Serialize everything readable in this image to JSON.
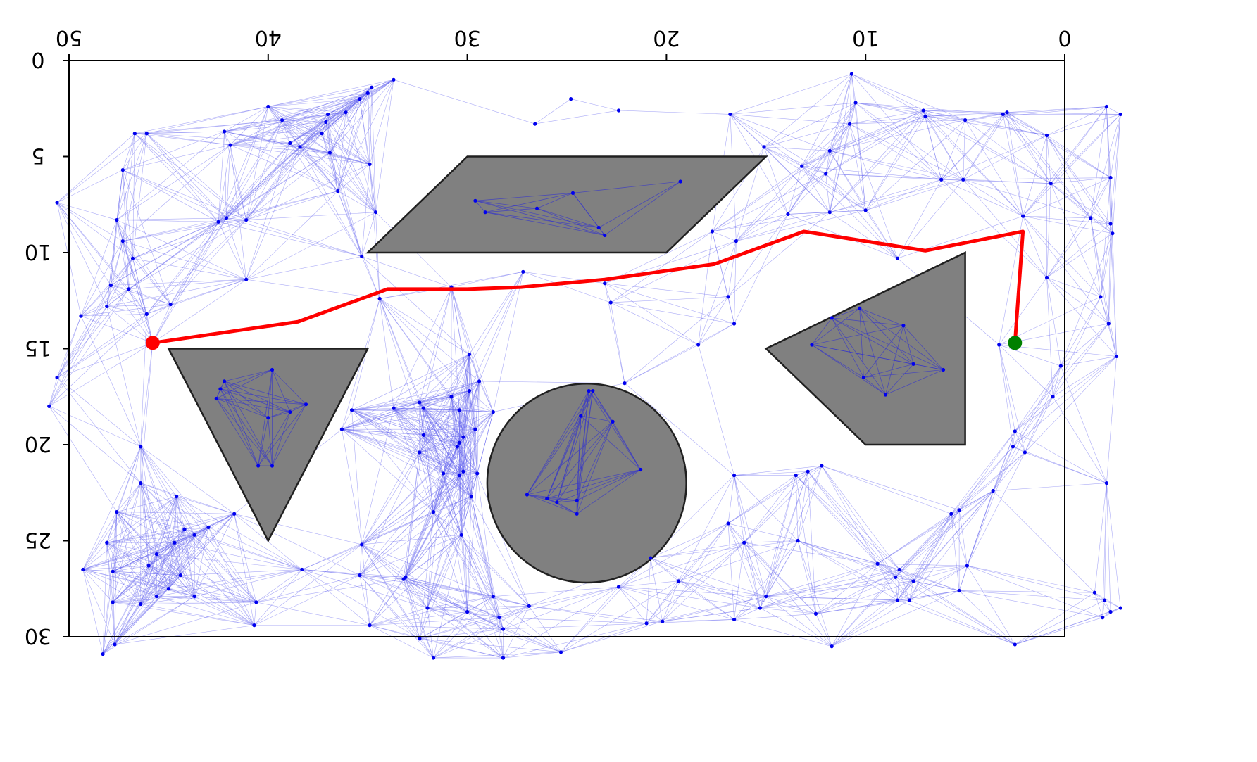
{
  "chart_data": {
    "type": "scatter",
    "description_role": "probabilistic roadmap path-planning plot",
    "xlim": [
      0,
      50
    ],
    "ylim": [
      0,
      30
    ],
    "y_inverted": true,
    "x_ticks": [
      {
        "value": 0,
        "label": "0"
      },
      {
        "value": 10,
        "label": "10"
      },
      {
        "value": 20,
        "label": "20"
      },
      {
        "value": 30,
        "label": "30"
      },
      {
        "value": 40,
        "label": "40"
      },
      {
        "value": 50,
        "label": "50"
      }
    ],
    "y_ticks": [
      {
        "value": 0,
        "label": "0"
      },
      {
        "value": 5,
        "label": "5"
      },
      {
        "value": 10,
        "label": "10"
      },
      {
        "value": 15,
        "label": "15"
      },
      {
        "value": 20,
        "label": "20"
      },
      {
        "value": 25,
        "label": "25"
      },
      {
        "value": 30,
        "label": "30"
      }
    ],
    "obstacles": [
      {
        "shape": "polygon",
        "name": "pentagon",
        "points": [
          [
            5,
            10
          ],
          [
            15,
            15
          ],
          [
            10,
            20
          ],
          [
            5,
            20
          ]
        ]
      },
      {
        "shape": "polygon",
        "name": "parallelogram",
        "points": [
          [
            15,
            5
          ],
          [
            30,
            5
          ],
          [
            35,
            10
          ],
          [
            20,
            10
          ]
        ]
      },
      {
        "shape": "circle",
        "name": "circle",
        "center": [
          24,
          22
        ],
        "radius": 5
      },
      {
        "shape": "polygon",
        "name": "triangle",
        "points": [
          [
            35,
            15
          ],
          [
            45,
            15
          ],
          [
            40,
            25
          ]
        ]
      }
    ],
    "path": [
      [
        2.5,
        14.7
      ],
      [
        2.1,
        8.9
      ],
      [
        7,
        9.9
      ],
      [
        13.1,
        8.9
      ],
      [
        17.6,
        10.6
      ],
      [
        23.1,
        11.4
      ],
      [
        27.3,
        11.8
      ],
      [
        30,
        11.9
      ],
      [
        34,
        11.9
      ],
      [
        38.5,
        13.6
      ],
      [
        45.8,
        14.7
      ]
    ],
    "start": [
      2.5,
      14.7
    ],
    "goal": [
      45.8,
      14.7
    ],
    "nodes": [
      [
        3.1,
        2.8
      ],
      [
        5,
        3.1
      ],
      [
        7,
        2.9
      ],
      [
        10.5,
        2.2
      ],
      [
        16.8,
        2.8
      ],
      [
        22.4,
        2.6
      ],
      [
        24.8,
        2
      ],
      [
        26.6,
        3.3
      ],
      [
        37,
        2.8
      ],
      [
        39.3,
        3.1
      ],
      [
        42.2,
        3.7
      ],
      [
        46.7,
        3.8
      ],
      [
        -2.8,
        2.8
      ],
      [
        -2.1,
        2.4
      ],
      [
        -2.3,
        6.1
      ],
      [
        -2.4,
        9
      ],
      [
        -2.3,
        8.5
      ],
      [
        -1.3,
        8.2
      ],
      [
        -1.8,
        12.3
      ],
      [
        -2.2,
        13.7
      ],
      [
        -2.6,
        15.4
      ],
      [
        -2.1,
        22
      ],
      [
        -1.5,
        27.7
      ],
      [
        -2,
        28.1
      ],
      [
        -2.3,
        28.7
      ],
      [
        -1.9,
        29
      ],
      [
        -2.8,
        28.5
      ],
      [
        50.6,
        7.4
      ],
      [
        50.6,
        16.5
      ],
      [
        51,
        18
      ],
      [
        2.5,
        30.4
      ],
      [
        11.7,
        30.5
      ],
      [
        25.3,
        30.8
      ],
      [
        28.2,
        31.1
      ],
      [
        31.7,
        31.1
      ],
      [
        47.7,
        30.4
      ],
      [
        48.3,
        30.9
      ],
      [
        10.7,
        0.7
      ],
      [
        7.1,
        2.6
      ],
      [
        2.9,
        2.7
      ],
      [
        0.9,
        3.9
      ],
      [
        0.7,
        6.4
      ],
      [
        5.1,
        6.2
      ],
      [
        6.2,
        6.2
      ],
      [
        10.8,
        3.3
      ],
      [
        11.8,
        4.7
      ],
      [
        12,
        5.9
      ],
      [
        13.2,
        5.5
      ],
      [
        15.1,
        4.5
      ],
      [
        2.1,
        8.1
      ],
      [
        0.9,
        11.3
      ],
      [
        3.3,
        14.8
      ],
      [
        0.6,
        17.5
      ],
      [
        0.2,
        15.9
      ],
      [
        2.5,
        19.3
      ],
      [
        2,
        20.4
      ],
      [
        10,
        7.8
      ],
      [
        11.8,
        7.9
      ],
      [
        13.9,
        8
      ],
      [
        8.4,
        10.3
      ],
      [
        17.7,
        8.9
      ],
      [
        16.9,
        12.3
      ],
      [
        16.6,
        13.7
      ],
      [
        18.4,
        14.8
      ],
      [
        22.1,
        16.8
      ],
      [
        22.8,
        12.6
      ],
      [
        27.2,
        11
      ],
      [
        23.1,
        11.6
      ],
      [
        33.7,
        1
      ],
      [
        34.8,
        1.4
      ],
      [
        35,
        1.7
      ],
      [
        35.4,
        2
      ],
      [
        36.1,
        2.7
      ],
      [
        37.1,
        3.2
      ],
      [
        37.3,
        3.8
      ],
      [
        40,
        2.4
      ],
      [
        38.9,
        4.3
      ],
      [
        38.4,
        4.5
      ],
      [
        41.9,
        4.4
      ],
      [
        36.9,
        4.8
      ],
      [
        36.5,
        6.8
      ],
      [
        34.9,
        5.4
      ],
      [
        34.6,
        7.9
      ],
      [
        46.1,
        3.8
      ],
      [
        47.3,
        5.7
      ],
      [
        47.3,
        9.4
      ],
      [
        42.1,
        8.2
      ],
      [
        42.5,
        8.4
      ],
      [
        41.1,
        8.3
      ],
      [
        46.8,
        10.3
      ],
      [
        47.6,
        8.3
      ],
      [
        41.1,
        11.4
      ],
      [
        46.1,
        13.2
      ],
      [
        47,
        11.9
      ],
      [
        47.9,
        11.7
      ],
      [
        44.9,
        12.7
      ],
      [
        48.1,
        12.8
      ],
      [
        49.4,
        13.3
      ],
      [
        16.5,
        9.4
      ],
      [
        35.3,
        10.2
      ],
      [
        30.8,
        11.8
      ],
      [
        34.4,
        12.4
      ],
      [
        29.9,
        15.3
      ],
      [
        29.4,
        16.7
      ],
      [
        29.9,
        17.2
      ],
      [
        30.8,
        17.5
      ],
      [
        30.4,
        18.2
      ],
      [
        32.2,
        18.1
      ],
      [
        32.4,
        17.8
      ],
      [
        33.7,
        18.1
      ],
      [
        35.8,
        18.2
      ],
      [
        36.3,
        19.2
      ],
      [
        28.7,
        18.3
      ],
      [
        29.6,
        19.2
      ],
      [
        30.2,
        19.6
      ],
      [
        30.5,
        20.1
      ],
      [
        30.2,
        21.4
      ],
      [
        30.4,
        21.6
      ],
      [
        31.2,
        21.5
      ],
      [
        32.4,
        20.4
      ],
      [
        29.8,
        22.7
      ],
      [
        31.7,
        23.5
      ],
      [
        30.3,
        24.7
      ],
      [
        35.3,
        25.2
      ],
      [
        35.4,
        26.8
      ],
      [
        33.1,
        26.9
      ],
      [
        33.2,
        27
      ],
      [
        30,
        28.7
      ],
      [
        32,
        28.5
      ],
      [
        28.4,
        29
      ],
      [
        28.2,
        29.6
      ],
      [
        32.4,
        30.1
      ],
      [
        34.9,
        29.4
      ],
      [
        38.3,
        26.5
      ],
      [
        40.7,
        29.4
      ],
      [
        45.8,
        14.7
      ],
      [
        46.4,
        20.1
      ],
      [
        46.4,
        22
      ],
      [
        44.6,
        22.7
      ],
      [
        41.7,
        23.6
      ],
      [
        47.6,
        23.5
      ],
      [
        43,
        24.3
      ],
      [
        44.2,
        24.4
      ],
      [
        43.7,
        24.7
      ],
      [
        44.7,
        25.1
      ],
      [
        45.6,
        25.7
      ],
      [
        48.1,
        25.1
      ],
      [
        46,
        26.3
      ],
      [
        44.4,
        26.8
      ],
      [
        47.8,
        26.6
      ],
      [
        49.3,
        26.5
      ],
      [
        45,
        27.5
      ],
      [
        45.6,
        27.9
      ],
      [
        43.7,
        27.9
      ],
      [
        46.4,
        28.3
      ],
      [
        47.8,
        28.2
      ],
      [
        40.6,
        28.2
      ],
      [
        2.6,
        20.1
      ],
      [
        3.6,
        22.4
      ],
      [
        5.3,
        23.4
      ],
      [
        5.7,
        23.6
      ],
      [
        4.9,
        26.3
      ],
      [
        5.3,
        27.6
      ],
      [
        7.6,
        27.1
      ],
      [
        8.3,
        26.5
      ],
      [
        8.5,
        26.9
      ],
      [
        9.4,
        26.2
      ],
      [
        7.8,
        28.1
      ],
      [
        8.4,
        28.1
      ],
      [
        12.2,
        21.1
      ],
      [
        12.9,
        21.4
      ],
      [
        13.5,
        21.6
      ],
      [
        13.4,
        25
      ],
      [
        16.1,
        25.1
      ],
      [
        16.9,
        24.1
      ],
      [
        16.6,
        21.6
      ],
      [
        15.3,
        28.5
      ],
      [
        15,
        27.9
      ],
      [
        12.5,
        28.8
      ],
      [
        16.6,
        29.1
      ],
      [
        21,
        29.3
      ],
      [
        20.2,
        29.2
      ],
      [
        19.4,
        27.1
      ],
      [
        20.8,
        25.9
      ],
      [
        22.4,
        27.4
      ],
      [
        26.9,
        28.4
      ],
      [
        28.7,
        27.9
      ],
      [
        29.5,
        21.5
      ],
      [
        30.4,
        19.9
      ],
      [
        32.2,
        19.5
      ]
    ],
    "obstacle_nodes": [
      [
        10.3,
        12.9
      ],
      [
        11.7,
        13.4
      ],
      [
        8.1,
        13.8
      ],
      [
        12.7,
        14.8
      ],
      [
        7.6,
        15.8
      ],
      [
        6.1,
        16.1
      ],
      [
        9,
        17.4
      ],
      [
        10.1,
        16.5
      ],
      [
        19.3,
        6.3
      ],
      [
        24.7,
        6.9
      ],
      [
        26.5,
        7.7
      ],
      [
        29.6,
        7.3
      ],
      [
        29.1,
        7.9
      ],
      [
        23.4,
        8.7
      ],
      [
        23.1,
        9.1
      ],
      [
        23.7,
        17.2
      ],
      [
        23.9,
        17.2
      ],
      [
        22.7,
        18.8
      ],
      [
        24.3,
        18.5
      ],
      [
        21.3,
        21.3
      ],
      [
        24.5,
        22.9
      ],
      [
        25.5,
        23
      ],
      [
        26,
        22.8
      ],
      [
        27,
        22.6
      ],
      [
        24.5,
        23.6
      ],
      [
        39.8,
        16.1
      ],
      [
        42.2,
        16.7
      ],
      [
        42.4,
        17.1
      ],
      [
        42.6,
        17.6
      ],
      [
        38.1,
        17.9
      ],
      [
        38.9,
        18.3
      ],
      [
        40,
        18.6
      ],
      [
        40.5,
        21.1
      ],
      [
        39.8,
        21.1
      ]
    ],
    "colors": {
      "obstacle_fill": "#808080",
      "obstacle_edge": "#202020",
      "node": "#0000ee",
      "edge": "#6666ee",
      "path": "#ff0000",
      "start": "#008000",
      "goal": "#ff0000",
      "axes": "#000000"
    },
    "grid": false
  }
}
